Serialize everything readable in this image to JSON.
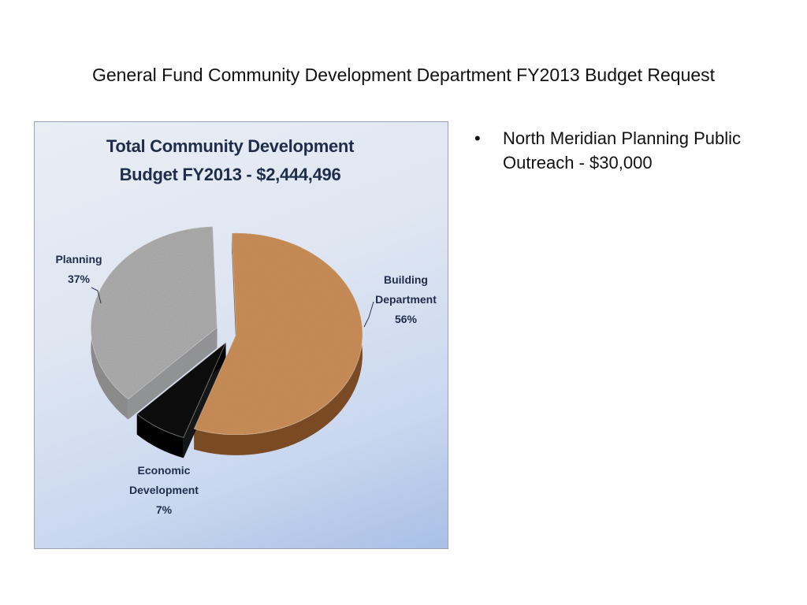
{
  "slide": {
    "title": "General Fund Community Development Department FY2013 Budget Request"
  },
  "bullets": [
    {
      "symbol": "•",
      "text": "North Meridian Planning Public Outreach - $30,000"
    }
  ],
  "chart_data": {
    "type": "pie",
    "style": "3d-exploded",
    "title_lines": [
      "Total Community Development",
      "Budget FY2013 - $2,444,496"
    ],
    "total": 2444496,
    "slices": [
      {
        "label_lines": [
          "Building",
          "Department"
        ],
        "percent_label": "56%",
        "value": 56,
        "color": "#c98a55",
        "side": "#7a4a24"
      },
      {
        "label_lines": [
          "Economic",
          "Development"
        ],
        "percent_label": "7%",
        "value": 7,
        "color": "#0c0c0c",
        "side": "#000000"
      },
      {
        "label_lines": [
          "Planning"
        ],
        "percent_label": "37%",
        "value": 37,
        "color": "#b4b4b4",
        "side": "#8a8a8a"
      }
    ]
  }
}
